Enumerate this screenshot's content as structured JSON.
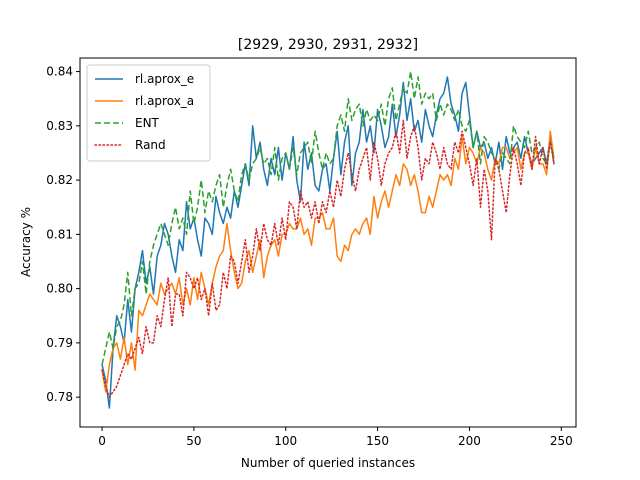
{
  "chart_data": {
    "type": "line",
    "title": "[2929, 2930, 2931, 2932]",
    "xlabel": "Number of queried instances",
    "ylabel": "Accuracy %",
    "xlim": [
      -12,
      258
    ],
    "ylim": [
      0.7745,
      0.8425
    ],
    "xticks": [
      0,
      50,
      100,
      150,
      200,
      250
    ],
    "yticks": [
      0.78,
      0.79,
      0.8,
      0.81,
      0.82,
      0.83,
      0.84
    ],
    "ytick_labels": [
      "0.78",
      "0.79",
      "0.80",
      "0.81",
      "0.82",
      "0.83",
      "0.84"
    ],
    "grid": false,
    "legend_position": "top-left",
    "series": [
      {
        "name": "rl.aprox_e",
        "color": "#1f77b4",
        "style": "solid",
        "x": [
          0,
          2,
          4,
          6,
          8,
          10,
          12,
          14,
          16,
          18,
          20,
          22,
          24,
          26,
          28,
          30,
          32,
          34,
          36,
          38,
          40,
          42,
          44,
          46,
          48,
          50,
          52,
          54,
          56,
          58,
          60,
          62,
          64,
          66,
          68,
          70,
          72,
          74,
          76,
          78,
          80,
          82,
          84,
          86,
          88,
          90,
          92,
          94,
          96,
          98,
          100,
          102,
          104,
          106,
          108,
          110,
          112,
          114,
          116,
          118,
          120,
          122,
          124,
          126,
          128,
          130,
          132,
          134,
          136,
          138,
          140,
          142,
          144,
          146,
          148,
          150,
          152,
          154,
          156,
          158,
          160,
          162,
          164,
          166,
          168,
          170,
          172,
          174,
          176,
          178,
          180,
          182,
          184,
          186,
          188,
          190,
          192,
          194,
          196,
          198,
          200,
          202,
          204,
          206,
          208,
          210,
          212,
          214,
          216,
          218,
          220,
          222,
          224,
          226,
          228,
          230,
          232,
          234,
          236,
          238,
          240,
          242,
          244,
          246
        ],
        "y": [
          0.786,
          0.783,
          0.778,
          0.789,
          0.795,
          0.793,
          0.79,
          0.798,
          0.792,
          0.8,
          0.803,
          0.807,
          0.801,
          0.804,
          0.799,
          0.806,
          0.808,
          0.812,
          0.81,
          0.806,
          0.803,
          0.809,
          0.807,
          0.816,
          0.811,
          0.813,
          0.809,
          0.806,
          0.813,
          0.812,
          0.81,
          0.817,
          0.814,
          0.812,
          0.815,
          0.813,
          0.818,
          0.815,
          0.819,
          0.823,
          0.819,
          0.83,
          0.824,
          0.827,
          0.822,
          0.819,
          0.824,
          0.821,
          0.826,
          0.82,
          0.825,
          0.822,
          0.828,
          0.82,
          0.816,
          0.827,
          0.822,
          0.825,
          0.819,
          0.818,
          0.822,
          0.823,
          0.818,
          0.824,
          0.829,
          0.821,
          0.827,
          0.83,
          0.819,
          0.825,
          0.827,
          0.833,
          0.827,
          0.83,
          0.825,
          0.833,
          0.83,
          0.826,
          0.828,
          0.834,
          0.828,
          0.832,
          0.838,
          0.831,
          0.835,
          0.829,
          0.831,
          0.827,
          0.833,
          0.83,
          0.828,
          0.832,
          0.835,
          0.836,
          0.839,
          0.834,
          0.832,
          0.829,
          0.836,
          0.838,
          0.832,
          0.826,
          0.829,
          0.826,
          0.827,
          0.824,
          0.826,
          0.823,
          0.827,
          0.822,
          0.828,
          0.825,
          0.826,
          0.827,
          0.824,
          0.828,
          0.825,
          0.823,
          0.824,
          0.825,
          0.826,
          0.823,
          0.828,
          0.823
        ]
      },
      {
        "name": "rl.aprox_a",
        "color": "#ff7f0e",
        "style": "solid",
        "x": [
          0,
          2,
          4,
          6,
          8,
          10,
          12,
          14,
          16,
          18,
          20,
          22,
          24,
          26,
          28,
          30,
          32,
          34,
          36,
          38,
          40,
          42,
          44,
          46,
          48,
          50,
          52,
          54,
          56,
          58,
          60,
          62,
          64,
          66,
          68,
          70,
          72,
          74,
          76,
          78,
          80,
          82,
          84,
          86,
          88,
          90,
          92,
          94,
          96,
          98,
          100,
          102,
          104,
          106,
          108,
          110,
          112,
          114,
          116,
          118,
          120,
          122,
          124,
          126,
          128,
          130,
          132,
          134,
          136,
          138,
          140,
          142,
          144,
          146,
          148,
          150,
          152,
          154,
          156,
          158,
          160,
          162,
          164,
          166,
          168,
          170,
          172,
          174,
          176,
          178,
          180,
          182,
          184,
          186,
          188,
          190,
          192,
          194,
          196,
          198,
          200,
          202,
          204,
          206,
          208,
          210,
          212,
          214,
          216,
          218,
          220,
          222,
          224,
          226,
          228,
          230,
          232,
          234,
          236,
          238,
          240,
          242,
          244,
          246
        ],
        "y": [
          0.785,
          0.781,
          0.786,
          0.789,
          0.79,
          0.787,
          0.791,
          0.786,
          0.79,
          0.785,
          0.796,
          0.795,
          0.797,
          0.799,
          0.798,
          0.797,
          0.801,
          0.799,
          0.8,
          0.801,
          0.799,
          0.802,
          0.797,
          0.8,
          0.797,
          0.802,
          0.798,
          0.803,
          0.8,
          0.797,
          0.801,
          0.804,
          0.806,
          0.807,
          0.812,
          0.807,
          0.803,
          0.8,
          0.801,
          0.805,
          0.807,
          0.803,
          0.806,
          0.809,
          0.802,
          0.806,
          0.808,
          0.809,
          0.806,
          0.81,
          0.81,
          0.812,
          0.811,
          0.811,
          0.813,
          0.81,
          0.811,
          0.808,
          0.813,
          0.813,
          0.814,
          0.811,
          0.811,
          0.813,
          0.806,
          0.805,
          0.808,
          0.807,
          0.81,
          0.811,
          0.81,
          0.812,
          0.813,
          0.81,
          0.817,
          0.813,
          0.816,
          0.818,
          0.815,
          0.818,
          0.821,
          0.819,
          0.823,
          0.822,
          0.819,
          0.821,
          0.818,
          0.814,
          0.814,
          0.817,
          0.815,
          0.818,
          0.821,
          0.82,
          0.821,
          0.819,
          0.824,
          0.822,
          0.828,
          0.823,
          0.826,
          0.825,
          0.823,
          0.826,
          0.825,
          0.822,
          0.82,
          0.824,
          0.823,
          0.826,
          0.826,
          0.824,
          0.825,
          0.826,
          0.822,
          0.825,
          0.825,
          0.822,
          0.826,
          0.823,
          0.823,
          0.821,
          0.829,
          0.824
        ]
      },
      {
        "name": "ENT",
        "color": "#2ca02c",
        "style": "dashed",
        "x": [
          0,
          2,
          4,
          6,
          8,
          10,
          12,
          14,
          16,
          18,
          20,
          22,
          24,
          26,
          28,
          30,
          32,
          34,
          36,
          38,
          40,
          42,
          44,
          46,
          48,
          50,
          52,
          54,
          56,
          58,
          60,
          62,
          64,
          66,
          68,
          70,
          72,
          74,
          76,
          78,
          80,
          82,
          84,
          86,
          88,
          90,
          92,
          94,
          96,
          98,
          100,
          102,
          104,
          106,
          108,
          110,
          112,
          114,
          116,
          118,
          120,
          122,
          124,
          126,
          128,
          130,
          132,
          134,
          136,
          138,
          140,
          142,
          144,
          146,
          148,
          150,
          152,
          154,
          156,
          158,
          160,
          162,
          164,
          166,
          168,
          170,
          172,
          174,
          176,
          178,
          180,
          182,
          184,
          186,
          188,
          190,
          192,
          194,
          196,
          198,
          200,
          202,
          204,
          206,
          208,
          210,
          212,
          214,
          216,
          218,
          220,
          222,
          224,
          226,
          228,
          230,
          232,
          234,
          236,
          238,
          240,
          242,
          244,
          246
        ],
        "y": [
          0.786,
          0.789,
          0.792,
          0.789,
          0.793,
          0.794,
          0.797,
          0.803,
          0.795,
          0.8,
          0.801,
          0.805,
          0.799,
          0.805,
          0.808,
          0.81,
          0.812,
          0.81,
          0.808,
          0.812,
          0.815,
          0.811,
          0.813,
          0.81,
          0.818,
          0.812,
          0.815,
          0.82,
          0.814,
          0.818,
          0.816,
          0.819,
          0.821,
          0.815,
          0.819,
          0.822,
          0.818,
          0.816,
          0.821,
          0.823,
          0.82,
          0.823,
          0.824,
          0.826,
          0.823,
          0.824,
          0.821,
          0.826,
          0.82,
          0.824,
          0.825,
          0.822,
          0.826,
          0.821,
          0.825,
          0.826,
          0.827,
          0.823,
          0.829,
          0.825,
          0.822,
          0.825,
          0.823,
          0.824,
          0.83,
          0.832,
          0.829,
          0.835,
          0.831,
          0.833,
          0.834,
          0.83,
          0.833,
          0.831,
          0.832,
          0.831,
          0.834,
          0.83,
          0.835,
          0.837,
          0.831,
          0.834,
          0.837,
          0.836,
          0.84,
          0.835,
          0.839,
          0.834,
          0.836,
          0.835,
          0.836,
          0.831,
          0.834,
          0.832,
          0.834,
          0.833,
          0.831,
          0.833,
          0.83,
          0.829,
          0.831,
          0.826,
          0.829,
          0.823,
          0.828,
          0.827,
          0.825,
          0.824,
          0.822,
          0.825,
          0.824,
          0.823,
          0.83,
          0.828,
          0.827,
          0.826,
          0.829,
          0.825,
          0.826,
          0.827,
          0.824,
          0.823,
          0.827,
          0.824
        ]
      },
      {
        "name": "Rand",
        "color": "#d62728",
        "style": "dotted",
        "x": [
          0,
          2,
          4,
          6,
          8,
          10,
          12,
          14,
          16,
          18,
          20,
          22,
          24,
          26,
          28,
          30,
          32,
          34,
          36,
          38,
          40,
          42,
          44,
          46,
          48,
          50,
          52,
          54,
          56,
          58,
          60,
          62,
          64,
          66,
          68,
          70,
          72,
          74,
          76,
          78,
          80,
          82,
          84,
          86,
          88,
          90,
          92,
          94,
          96,
          98,
          100,
          102,
          104,
          106,
          108,
          110,
          112,
          114,
          116,
          118,
          120,
          122,
          124,
          126,
          128,
          130,
          132,
          134,
          136,
          138,
          140,
          142,
          144,
          146,
          148,
          150,
          152,
          154,
          156,
          158,
          160,
          162,
          164,
          166,
          168,
          170,
          172,
          174,
          176,
          178,
          180,
          182,
          184,
          186,
          188,
          190,
          192,
          194,
          196,
          198,
          200,
          202,
          204,
          206,
          208,
          210,
          212,
          214,
          216,
          218,
          220,
          222,
          224,
          226,
          228,
          230,
          232,
          234,
          236,
          238,
          240,
          242,
          244,
          246
        ],
        "y": [
          0.785,
          0.782,
          0.78,
          0.781,
          0.782,
          0.784,
          0.786,
          0.788,
          0.787,
          0.789,
          0.791,
          0.788,
          0.793,
          0.79,
          0.79,
          0.795,
          0.793,
          0.798,
          0.802,
          0.793,
          0.799,
          0.799,
          0.795,
          0.803,
          0.802,
          0.8,
          0.802,
          0.798,
          0.8,
          0.795,
          0.801,
          0.796,
          0.797,
          0.803,
          0.8,
          0.806,
          0.805,
          0.801,
          0.805,
          0.809,
          0.803,
          0.806,
          0.811,
          0.807,
          0.812,
          0.809,
          0.808,
          0.812,
          0.808,
          0.813,
          0.809,
          0.816,
          0.815,
          0.811,
          0.818,
          0.815,
          0.816,
          0.813,
          0.816,
          0.812,
          0.816,
          0.814,
          0.818,
          0.815,
          0.82,
          0.817,
          0.822,
          0.825,
          0.821,
          0.818,
          0.822,
          0.824,
          0.826,
          0.82,
          0.827,
          0.824,
          0.819,
          0.823,
          0.825,
          0.826,
          0.829,
          0.825,
          0.831,
          0.824,
          0.828,
          0.83,
          0.826,
          0.82,
          0.824,
          0.823,
          0.827,
          0.825,
          0.822,
          0.826,
          0.823,
          0.822,
          0.827,
          0.825,
          0.829,
          0.826,
          0.823,
          0.819,
          0.824,
          0.815,
          0.822,
          0.818,
          0.809,
          0.824,
          0.822,
          0.818,
          0.814,
          0.821,
          0.826,
          0.823,
          0.819,
          0.825,
          0.826,
          0.822,
          0.828,
          0.823,
          0.826,
          0.822,
          0.827,
          0.823
        ]
      }
    ]
  }
}
